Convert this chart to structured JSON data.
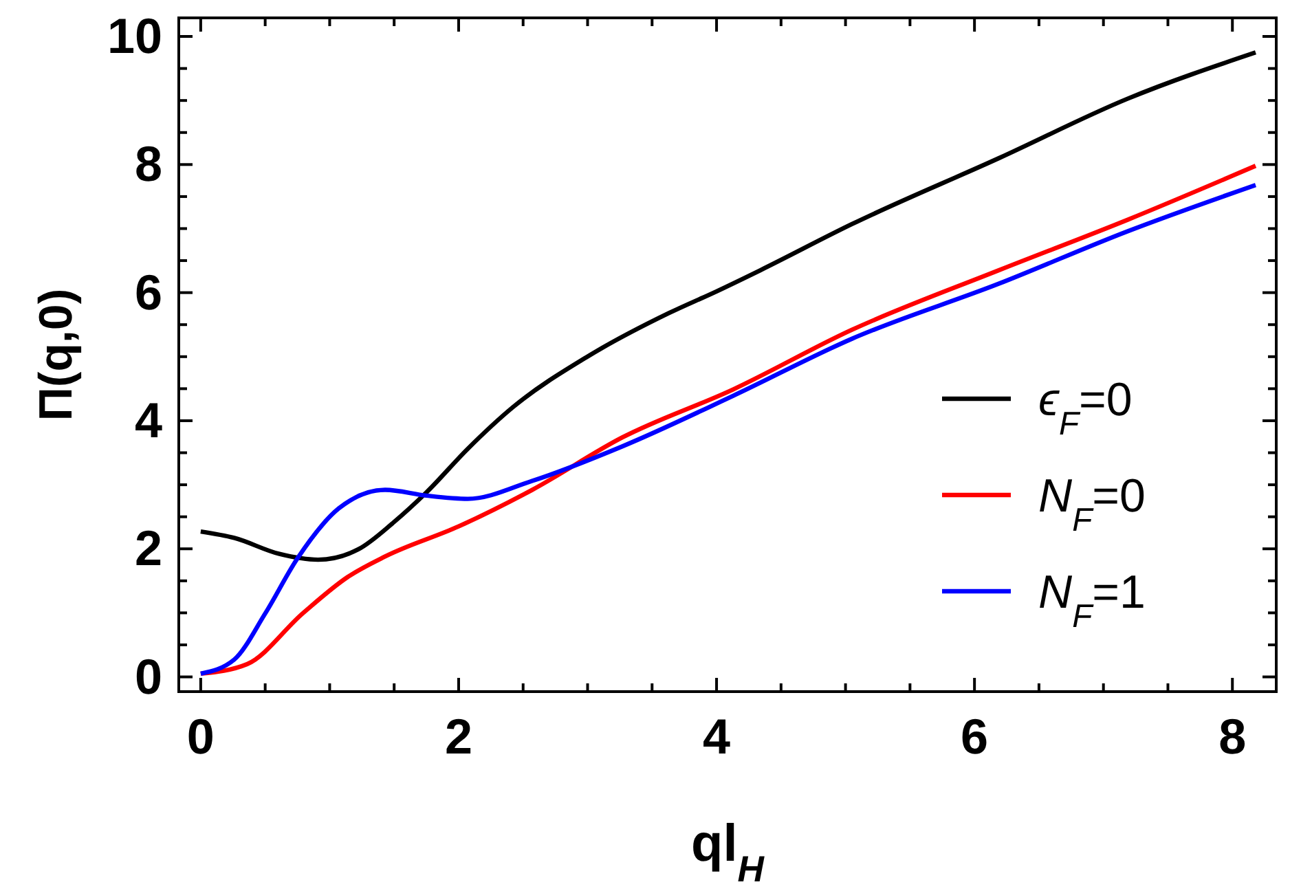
{
  "chart_data": {
    "type": "line",
    "xlabel": "ql$_{H}$",
    "ylabel": "Π(q,0)",
    "xlim": [
      -0.17,
      8.34
    ],
    "ylim": [
      -0.23,
      10.29
    ],
    "xticks": [
      0,
      {
        "value": 0.5,
        "label": null
      },
      2,
      {
        "value": 1,
        "label": null
      },
      {
        "value": 1.5,
        "label": null
      },
      {
        "value": 2.5,
        "label": null
      },
      {
        "value": 3,
        "label": null
      },
      {
        "value": 3.5,
        "label": null
      },
      4,
      {
        "value": 4.5,
        "label": null
      },
      {
        "value": 5,
        "label": null
      },
      {
        "value": 5.5,
        "label": null
      },
      6,
      {
        "value": 6.5,
        "label": null
      },
      {
        "value": 7,
        "label": null
      },
      {
        "value": 7.5,
        "label": null
      },
      8
    ],
    "yticks": [
      0,
      {
        "value": 0.5,
        "label": null
      },
      {
        "value": 1,
        "label": null
      },
      {
        "value": 1.5,
        "label": null
      },
      2,
      {
        "value": 2.5,
        "label": null
      },
      {
        "value": 3,
        "label": null
      },
      {
        "value": 3.5,
        "label": null
      },
      4,
      {
        "value": 4.5,
        "label": null
      },
      {
        "value": 5,
        "label": null
      },
      {
        "value": 5.5,
        "label": null
      },
      6,
      {
        "value": 6.5,
        "label": null
      },
      {
        "value": 7,
        "label": null
      },
      {
        "value": 7.5,
        "label": null
      },
      8,
      {
        "value": 8.5,
        "label": null
      },
      {
        "value": 9,
        "label": null
      },
      {
        "value": 9.5,
        "label": null
      },
      10
    ],
    "grid": false,
    "legend": "right",
    "line_style": "solid",
    "series": [
      {
        "name": "ϵ$_{F}$=0",
        "color": "#000000",
        "x": [
          0,
          0.26,
          0.61,
          0.91,
          1.22,
          1.5,
          1.75,
          2.07,
          2.42,
          2.99,
          3.63,
          4.0,
          4.34,
          5.05,
          6.19,
          7.19,
          8.18
        ],
        "values": [
          2.27,
          2.17,
          1.92,
          1.83,
          1.99,
          2.42,
          2.88,
          3.56,
          4.21,
          4.99,
          5.68,
          6.02,
          6.35,
          7.07,
          8.1,
          9.03,
          9.75
        ]
      },
      {
        "name": "N$_{F}$=0",
        "color": "#ff0000",
        "x": [
          0,
          0.36,
          0.79,
          1.14,
          1.43,
          2.0,
          2.57,
          3.27,
          4.13,
          5.05,
          6.19,
          7.19,
          8.18
        ],
        "values": [
          0.05,
          0.2,
          0.99,
          1.56,
          1.88,
          2.35,
          2.92,
          3.74,
          4.49,
          5.42,
          6.35,
          7.14,
          7.98
        ]
      },
      {
        "name": "N$_{F}$=1",
        "color": "#0000ff",
        "x": [
          0,
          0.26,
          0.5,
          0.75,
          1.07,
          1.43,
          1.75,
          2.07,
          2.57,
          3.27,
          4.13,
          5.05,
          6.19,
          7.19,
          8.18
        ],
        "values": [
          0.05,
          0.27,
          0.99,
          1.85,
          2.63,
          2.92,
          2.83,
          2.78,
          3.06,
          3.6,
          4.39,
          5.28,
          6.14,
          6.96,
          7.68
        ]
      }
    ]
  }
}
